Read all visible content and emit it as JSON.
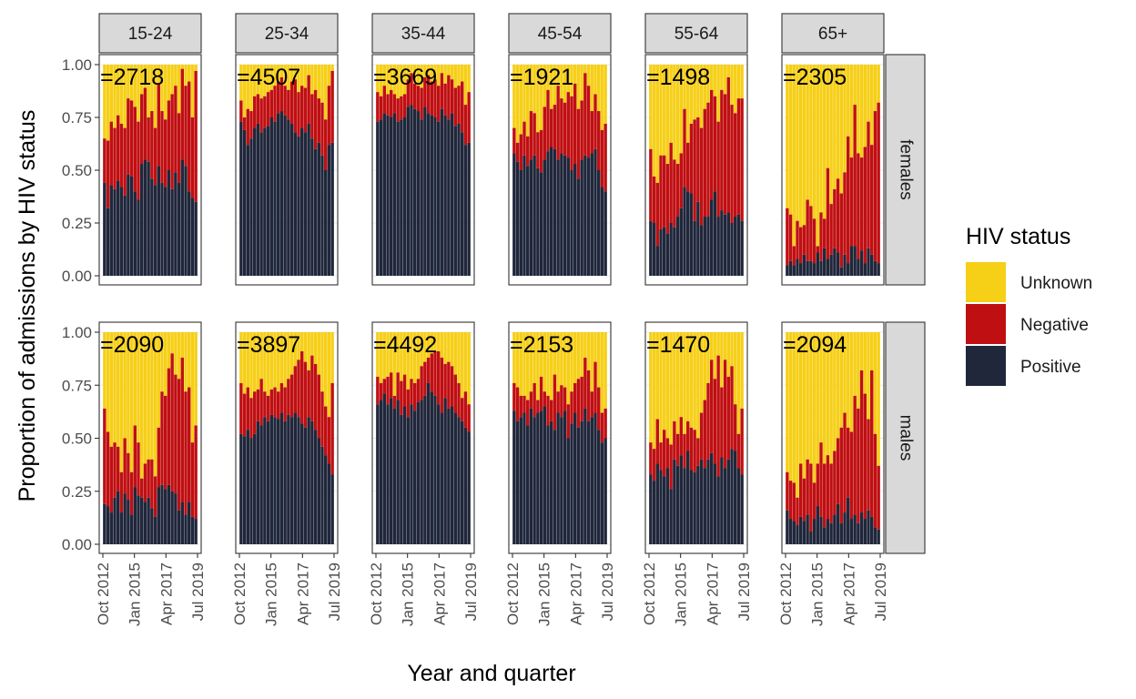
{
  "chart_data": {
    "type": "bar",
    "stacked": true,
    "xlabel": "Year and quarter",
    "ylabel": "Proportion of admissions by HIV status",
    "ylim": [
      0,
      1
    ],
    "y_ticks": [
      "0.00",
      "0.25",
      "0.50",
      "0.75",
      "1.00"
    ],
    "x_ticks": [
      "Oct 2012",
      "Jan 2015",
      "Apr 2017",
      "Jul 2019"
    ],
    "grid": true,
    "legend": {
      "title": "HIV status",
      "placement": "right",
      "entries": [
        {
          "name": "Unknown",
          "color": "#F6CF17"
        },
        {
          "name": "Negative",
          "color": "#C00F12"
        },
        {
          "name": "Positive",
          "color": "#20273B"
        }
      ]
    },
    "categories": [
      "2012 Q4",
      "2013 Q1",
      "2013 Q2",
      "2013 Q3",
      "2013 Q4",
      "2014 Q1",
      "2014 Q2",
      "2014 Q3",
      "2014 Q4",
      "2015 Q1",
      "2015 Q2",
      "2015 Q3",
      "2015 Q4",
      "2016 Q1",
      "2016 Q2",
      "2016 Q3",
      "2016 Q4",
      "2017 Q1",
      "2017 Q2",
      "2017 Q3",
      "2017 Q4",
      "2018 Q1",
      "2018 Q2",
      "2018 Q3",
      "2018 Q4",
      "2019 Q1",
      "2019 Q2",
      "2019 Q3"
    ],
    "facet_cols": [
      "15-24",
      "25-34",
      "35-44",
      "45-54",
      "55-64",
      "65+"
    ],
    "facet_rows": [
      "females",
      "males"
    ],
    "panels": [
      {
        "row": "females",
        "col": "15-24",
        "label": "=2718",
        "positive": [
          0.44,
          0.32,
          0.43,
          0.41,
          0.45,
          0.42,
          0.38,
          0.48,
          0.47,
          0.4,
          0.36,
          0.53,
          0.55,
          0.54,
          0.46,
          0.43,
          0.52,
          0.44,
          0.42,
          0.5,
          0.41,
          0.49,
          0.44,
          0.55,
          0.52,
          0.4,
          0.37,
          0.35
        ],
        "negative": [
          0.65,
          0.64,
          0.73,
          0.7,
          0.76,
          0.72,
          0.7,
          0.84,
          0.83,
          0.8,
          0.73,
          0.86,
          0.89,
          0.75,
          0.78,
          0.7,
          0.91,
          0.78,
          0.74,
          0.83,
          0.86,
          0.9,
          0.77,
          0.98,
          0.9,
          0.92,
          0.75,
          0.97
        ]
      },
      {
        "row": "females",
        "col": "25-34",
        "label": "=4507",
        "positive": [
          0.73,
          0.69,
          0.62,
          0.65,
          0.7,
          0.72,
          0.68,
          0.7,
          0.71,
          0.75,
          0.73,
          0.77,
          0.78,
          0.76,
          0.74,
          0.72,
          0.68,
          0.66,
          0.7,
          0.68,
          0.72,
          0.65,
          0.6,
          0.63,
          0.57,
          0.5,
          0.62,
          0.63
        ],
        "negative": [
          0.83,
          0.75,
          0.79,
          0.78,
          0.85,
          0.86,
          0.84,
          0.85,
          0.87,
          0.88,
          0.9,
          0.92,
          0.94,
          0.9,
          0.88,
          0.92,
          0.93,
          0.87,
          0.9,
          0.89,
          0.95,
          0.86,
          0.88,
          0.84,
          0.82,
          0.74,
          0.9,
          0.97
        ]
      },
      {
        "row": "females",
        "col": "35-44",
        "label": "=3669",
        "positive": [
          0.73,
          0.74,
          0.77,
          0.76,
          0.75,
          0.77,
          0.73,
          0.74,
          0.75,
          0.8,
          0.81,
          0.79,
          0.78,
          0.74,
          0.8,
          0.77,
          0.76,
          0.75,
          0.73,
          0.79,
          0.76,
          0.74,
          0.77,
          0.71,
          0.72,
          0.68,
          0.62,
          0.63
        ],
        "negative": [
          0.87,
          0.85,
          0.9,
          0.86,
          0.88,
          0.86,
          0.84,
          0.85,
          0.86,
          0.93,
          0.96,
          0.91,
          0.9,
          0.89,
          0.94,
          0.95,
          0.92,
          0.93,
          0.9,
          0.96,
          0.91,
          0.95,
          0.93,
          0.89,
          0.9,
          0.92,
          0.81,
          0.87
        ]
      },
      {
        "row": "females",
        "col": "45-54",
        "label": "=1921",
        "positive": [
          0.58,
          0.54,
          0.5,
          0.57,
          0.52,
          0.55,
          0.57,
          0.51,
          0.49,
          0.55,
          0.59,
          0.61,
          0.6,
          0.55,
          0.58,
          0.57,
          0.56,
          0.5,
          0.53,
          0.46,
          0.55,
          0.57,
          0.56,
          0.58,
          0.6,
          0.5,
          0.42,
          0.4
        ],
        "negative": [
          0.7,
          0.63,
          0.67,
          0.73,
          0.66,
          0.78,
          0.77,
          0.68,
          0.69,
          0.8,
          0.88,
          0.79,
          0.81,
          0.9,
          0.84,
          0.82,
          0.87,
          0.85,
          0.91,
          0.79,
          0.83,
          0.96,
          0.9,
          0.78,
          0.86,
          0.78,
          0.69,
          0.72
        ]
      },
      {
        "row": "females",
        "col": "55-64",
        "label": "=1498",
        "positive": [
          0.26,
          0.25,
          0.14,
          0.22,
          0.23,
          0.2,
          0.25,
          0.23,
          0.28,
          0.32,
          0.42,
          0.4,
          0.39,
          0.26,
          0.35,
          0.24,
          0.28,
          0.28,
          0.36,
          0.4,
          0.28,
          0.31,
          0.29,
          0.3,
          0.25,
          0.28,
          0.29,
          0.26
        ],
        "negative": [
          0.6,
          0.47,
          0.44,
          0.57,
          0.57,
          0.53,
          0.63,
          0.55,
          0.53,
          0.58,
          0.79,
          0.63,
          0.72,
          0.74,
          0.75,
          0.7,
          0.79,
          0.82,
          0.88,
          0.85,
          0.73,
          0.88,
          0.86,
          0.94,
          0.81,
          0.77,
          0.84,
          0.84
        ]
      },
      {
        "row": "females",
        "col": "65+",
        "label": "=2305",
        "positive": [
          0.05,
          0.07,
          0.05,
          0.08,
          0.06,
          0.1,
          0.07,
          0.07,
          0.06,
          0.11,
          0.07,
          0.13,
          0.08,
          0.1,
          0.13,
          0.11,
          0.04,
          0.1,
          0.06,
          0.14,
          0.14,
          0.08,
          0.12,
          0.06,
          0.13,
          0.1,
          0.07,
          0.06
        ],
        "negative": [
          0.32,
          0.29,
          0.14,
          0.26,
          0.23,
          0.24,
          0.36,
          0.33,
          0.27,
          0.14,
          0.3,
          0.27,
          0.51,
          0.34,
          0.41,
          0.46,
          0.39,
          0.49,
          0.66,
          0.56,
          0.81,
          0.58,
          0.56,
          0.61,
          0.73,
          0.62,
          0.78,
          0.82
        ]
      },
      {
        "row": "males",
        "col": "15-24",
        "label": "=2090",
        "positive": [
          0.19,
          0.18,
          0.15,
          0.22,
          0.25,
          0.15,
          0.24,
          0.21,
          0.14,
          0.27,
          0.23,
          0.22,
          0.2,
          0.22,
          0.17,
          0.13,
          0.27,
          0.28,
          0.26,
          0.28,
          0.25,
          0.24,
          0.16,
          0.2,
          0.14,
          0.2,
          0.13,
          0.12
        ],
        "negative": [
          0.64,
          0.53,
          0.46,
          0.48,
          0.46,
          0.34,
          0.5,
          0.43,
          0.34,
          0.56,
          0.48,
          0.31,
          0.38,
          0.4,
          0.4,
          0.32,
          0.55,
          0.72,
          0.7,
          0.83,
          0.9,
          0.8,
          0.78,
          0.88,
          0.72,
          0.74,
          0.48,
          0.56
        ]
      },
      {
        "row": "males",
        "col": "25-34",
        "label": "=3897",
        "positive": [
          0.52,
          0.51,
          0.54,
          0.5,
          0.52,
          0.58,
          0.56,
          0.6,
          0.58,
          0.61,
          0.6,
          0.59,
          0.62,
          0.58,
          0.61,
          0.6,
          0.62,
          0.6,
          0.57,
          0.55,
          0.6,
          0.58,
          0.54,
          0.5,
          0.46,
          0.42,
          0.38,
          0.33
        ],
        "negative": [
          0.76,
          0.71,
          0.74,
          0.69,
          0.72,
          0.73,
          0.78,
          0.72,
          0.7,
          0.73,
          0.74,
          0.72,
          0.76,
          0.74,
          0.78,
          0.8,
          0.84,
          0.87,
          0.91,
          0.86,
          0.82,
          0.89,
          0.85,
          0.8,
          0.72,
          0.65,
          0.6,
          0.76
        ]
      },
      {
        "row": "males",
        "col": "35-44",
        "label": "=4492",
        "positive": [
          0.66,
          0.68,
          0.71,
          0.66,
          0.69,
          0.64,
          0.68,
          0.61,
          0.65,
          0.6,
          0.66,
          0.63,
          0.67,
          0.68,
          0.7,
          0.76,
          0.72,
          0.7,
          0.66,
          0.62,
          0.69,
          0.64,
          0.65,
          0.62,
          0.6,
          0.58,
          0.55,
          0.53
        ],
        "negative": [
          0.79,
          0.76,
          0.78,
          0.79,
          0.81,
          0.7,
          0.81,
          0.77,
          0.8,
          0.73,
          0.78,
          0.76,
          0.78,
          0.84,
          0.86,
          0.88,
          0.9,
          0.91,
          0.91,
          0.88,
          0.85,
          0.86,
          0.84,
          0.8,
          0.76,
          0.69,
          0.72,
          0.66
        ]
      },
      {
        "row": "males",
        "col": "45-54",
        "label": "=2153",
        "positive": [
          0.63,
          0.58,
          0.6,
          0.62,
          0.56,
          0.64,
          0.6,
          0.62,
          0.63,
          0.65,
          0.56,
          0.58,
          0.54,
          0.62,
          0.6,
          0.63,
          0.5,
          0.57,
          0.62,
          0.55,
          0.58,
          0.64,
          0.58,
          0.6,
          0.62,
          0.54,
          0.48,
          0.5
        ],
        "negative": [
          0.76,
          0.74,
          0.7,
          0.7,
          0.68,
          0.72,
          0.76,
          0.68,
          0.79,
          0.72,
          0.7,
          0.68,
          0.8,
          0.72,
          0.75,
          0.74,
          0.66,
          0.72,
          0.76,
          0.78,
          0.79,
          0.88,
          0.82,
          0.72,
          0.86,
          0.74,
          0.62,
          0.64
        ]
      },
      {
        "row": "males",
        "col": "55-64",
        "label": "=1470",
        "positive": [
          0.33,
          0.3,
          0.38,
          0.35,
          0.32,
          0.36,
          0.26,
          0.4,
          0.37,
          0.42,
          0.36,
          0.44,
          0.35,
          0.34,
          0.37,
          0.4,
          0.36,
          0.4,
          0.43,
          0.38,
          0.32,
          0.41,
          0.36,
          0.4,
          0.45,
          0.44,
          0.36,
          0.33
        ],
        "negative": [
          0.48,
          0.45,
          0.59,
          0.48,
          0.54,
          0.5,
          0.47,
          0.58,
          0.52,
          0.6,
          0.52,
          0.58,
          0.55,
          0.54,
          0.5,
          0.62,
          0.68,
          0.76,
          0.87,
          0.78,
          0.89,
          0.74,
          0.87,
          0.79,
          0.84,
          0.66,
          0.52,
          0.64
        ]
      },
      {
        "row": "males",
        "col": "65+",
        "label": "=2094",
        "positive": [
          0.16,
          0.12,
          0.11,
          0.09,
          0.13,
          0.11,
          0.14,
          0.06,
          0.12,
          0.18,
          0.13,
          0.08,
          0.12,
          0.1,
          0.14,
          0.19,
          0.1,
          0.15,
          0.22,
          0.12,
          0.14,
          0.1,
          0.15,
          0.12,
          0.16,
          0.13,
          0.08,
          0.07
        ],
        "negative": [
          0.34,
          0.3,
          0.29,
          0.22,
          0.38,
          0.31,
          0.4,
          0.38,
          0.29,
          0.38,
          0.48,
          0.38,
          0.42,
          0.38,
          0.44,
          0.5,
          0.55,
          0.62,
          0.55,
          0.53,
          0.7,
          0.64,
          0.82,
          0.71,
          0.59,
          0.82,
          0.52,
          0.37
        ]
      }
    ]
  }
}
